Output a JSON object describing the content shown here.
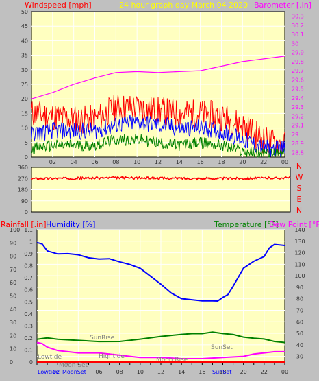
{
  "colors": {
    "frame_bg": "#c0c0c0",
    "plot_bg": "#ffffc0",
    "grid": "#ffffff",
    "tick_text": "#333333",
    "wind_speed": "#ff0000",
    "wind_avg": "#0000ff",
    "wind_min": "#008000",
    "barometer": "#ff00ff",
    "wind_dir": "#ff0000",
    "rainfall": "#ff0000",
    "humidity": "#0000ff",
    "temperature": "#008000",
    "dew_point": "#ff00ff",
    "title_yellow": "#ffff00"
  },
  "top_panel": {
    "left_label": "Windspeed [mph]",
    "title": "24 hour graph day   March 04 2020",
    "right_label": "Barometer [.in]",
    "left_ticks": [
      "50",
      "45",
      "40",
      "35",
      "30",
      "25",
      "20",
      "15",
      "10",
      "5",
      "0"
    ],
    "right_ticks": [
      "30.3",
      "30.2",
      "30.1",
      "30",
      "29.9",
      "29.8",
      "29.7",
      "29.6",
      "29.5",
      "29.4",
      "29.3",
      "29.2",
      "29.1",
      "29",
      "28.9",
      "28.8"
    ],
    "x_ticks": [
      "02",
      "04",
      "06",
      "08",
      "10",
      "12",
      "14",
      "16",
      "18",
      "20",
      "22",
      "00"
    ]
  },
  "mid_panel": {
    "left_ticks": [
      "360",
      "270",
      "180",
      "90",
      "0"
    ],
    "right_letters": [
      "N",
      "W",
      "S",
      "E",
      "N"
    ]
  },
  "bottom_panel": {
    "rain_label": "Rainfall [.in]",
    "humidity_label": "Humidity [%]",
    "temp_label": "Temperature [°F]",
    "dew_label": "Dew Point [°F]",
    "rain_ticks": [
      "1.1",
      "1",
      "0.9",
      "0.8",
      "0.7",
      "0.6",
      "0.5",
      "0.4",
      "0.3",
      "0.2",
      "0.1",
      "0"
    ],
    "humidity_ticks": [
      "100",
      "90",
      "80",
      "70",
      "60",
      "50",
      "40",
      "30",
      "20",
      "10",
      "0"
    ],
    "temp_ticks": [
      "140",
      "130",
      "120",
      "110",
      "100",
      "90",
      "80",
      "70",
      "60",
      "50",
      "40",
      "30"
    ],
    "x_ticks": [
      "06",
      "08",
      "10",
      "12",
      "14",
      "16",
      "18",
      "20",
      "22",
      "00"
    ],
    "annotations": {
      "sunrise": "SunRise",
      "sunset": "SunSet",
      "moonset": "Moon Set",
      "moonrise": "Moon Rise",
      "hightide": "Hightide",
      "lowtide": "Lowtide"
    },
    "bottom_row": {
      "lowtide": "Lowtide",
      "num": "02",
      "moonset": "MoonSet",
      "sunset": "SunSet"
    }
  },
  "chart_data": [
    {
      "type": "line",
      "title": "24 hour graph day   March 04 2020",
      "x_range": [
        0,
        24
      ],
      "x_ticks": [
        "02",
        "04",
        "06",
        "08",
        "10",
        "12",
        "14",
        "16",
        "18",
        "20",
        "22",
        "00"
      ],
      "ylabel": "Windspeed [mph]",
      "ylim": [
        0,
        50
      ],
      "y2label": "Barometer [.in]",
      "y2lim": [
        28.75,
        30.35
      ],
      "series": [
        {
          "name": "Windspeed [mph]",
          "x": [
            0,
            2,
            4,
            6,
            8,
            10,
            12,
            14,
            16,
            18,
            20,
            22,
            24
          ],
          "gust": [
            15,
            14,
            13,
            13,
            17,
            17,
            16,
            15,
            15,
            14,
            11,
            6,
            4
          ],
          "average": [
            8,
            9,
            9,
            9,
            11,
            12,
            11,
            10,
            10,
            9,
            6,
            3,
            3
          ],
          "minimum": [
            3,
            4,
            4,
            4,
            6,
            6,
            5,
            4,
            5,
            4,
            2,
            1,
            1
          ]
        },
        {
          "name": "Barometer [.in]",
          "x": [
            0,
            2,
            4,
            6,
            8,
            10,
            12,
            14,
            16,
            18,
            20,
            22,
            24
          ],
          "values": [
            29.39,
            29.46,
            29.55,
            29.62,
            29.68,
            29.69,
            29.68,
            29.69,
            29.7,
            29.75,
            29.8,
            29.83,
            29.86
          ]
        }
      ]
    },
    {
      "type": "line",
      "ylim": [
        0,
        360
      ],
      "x_range": [
        0,
        24
      ],
      "series": [
        {
          "name": "Wind direction",
          "x": [
            0,
            4,
            8,
            12,
            16,
            20,
            24
          ],
          "values": [
            270,
            272,
            276,
            272,
            270,
            272,
            275
          ]
        }
      ]
    },
    {
      "type": "line",
      "x_range": [
        0,
        24
      ],
      "x_ticks": [
        "06",
        "08",
        "10",
        "12",
        "14",
        "16",
        "18",
        "20",
        "22",
        "00"
      ],
      "ylabel": "Humidity [%]",
      "ylim": [
        0,
        100
      ],
      "y2label": "Temperature [°F]",
      "y2lim": [
        25,
        140
      ],
      "rain_label": "Rainfall [.in]",
      "rain_ylim": [
        0,
        1.1
      ],
      "series": [
        {
          "name": "Humidity [%]",
          "x": [
            0,
            0.5,
            1,
            2,
            3,
            4,
            5,
            6,
            7,
            8,
            9,
            10,
            11,
            12,
            13,
            14,
            15,
            16,
            17,
            17.5,
            18,
            18.5,
            19,
            20,
            21,
            22,
            22.5,
            23,
            24
          ],
          "values": [
            90,
            89,
            84,
            82,
            82,
            81,
            79,
            78,
            78,
            76,
            74,
            71,
            65,
            59,
            52,
            48,
            47,
            46,
            46,
            46,
            49,
            51,
            57,
            71,
            76,
            80,
            86,
            89,
            88
          ]
        },
        {
          "name": "Temperature [°F]",
          "x": [
            0,
            1,
            2,
            4,
            6,
            8,
            10,
            12,
            14,
            15,
            16,
            17,
            18,
            19,
            20,
            21,
            22,
            23,
            24
          ],
          "values": [
            45,
            46,
            45,
            44,
            43,
            43,
            45,
            47,
            49,
            50,
            50,
            51,
            50,
            49,
            47,
            46,
            45,
            43,
            42
          ]
        },
        {
          "name": "Dew Point [°F]",
          "x": [
            0,
            0.5,
            1,
            2,
            3,
            4,
            5,
            6,
            7,
            8,
            9,
            10,
            12,
            14,
            16,
            18,
            20,
            21,
            22,
            23,
            24
          ],
          "values": [
            42,
            41,
            38,
            35,
            34,
            33,
            33,
            33,
            32,
            31,
            30,
            29,
            29,
            28,
            28,
            29,
            30,
            32,
            33,
            34,
            34
          ]
        },
        {
          "name": "Rainfall [.in]",
          "x": [
            0,
            24
          ],
          "values": [
            0,
            0
          ]
        }
      ]
    }
  ]
}
